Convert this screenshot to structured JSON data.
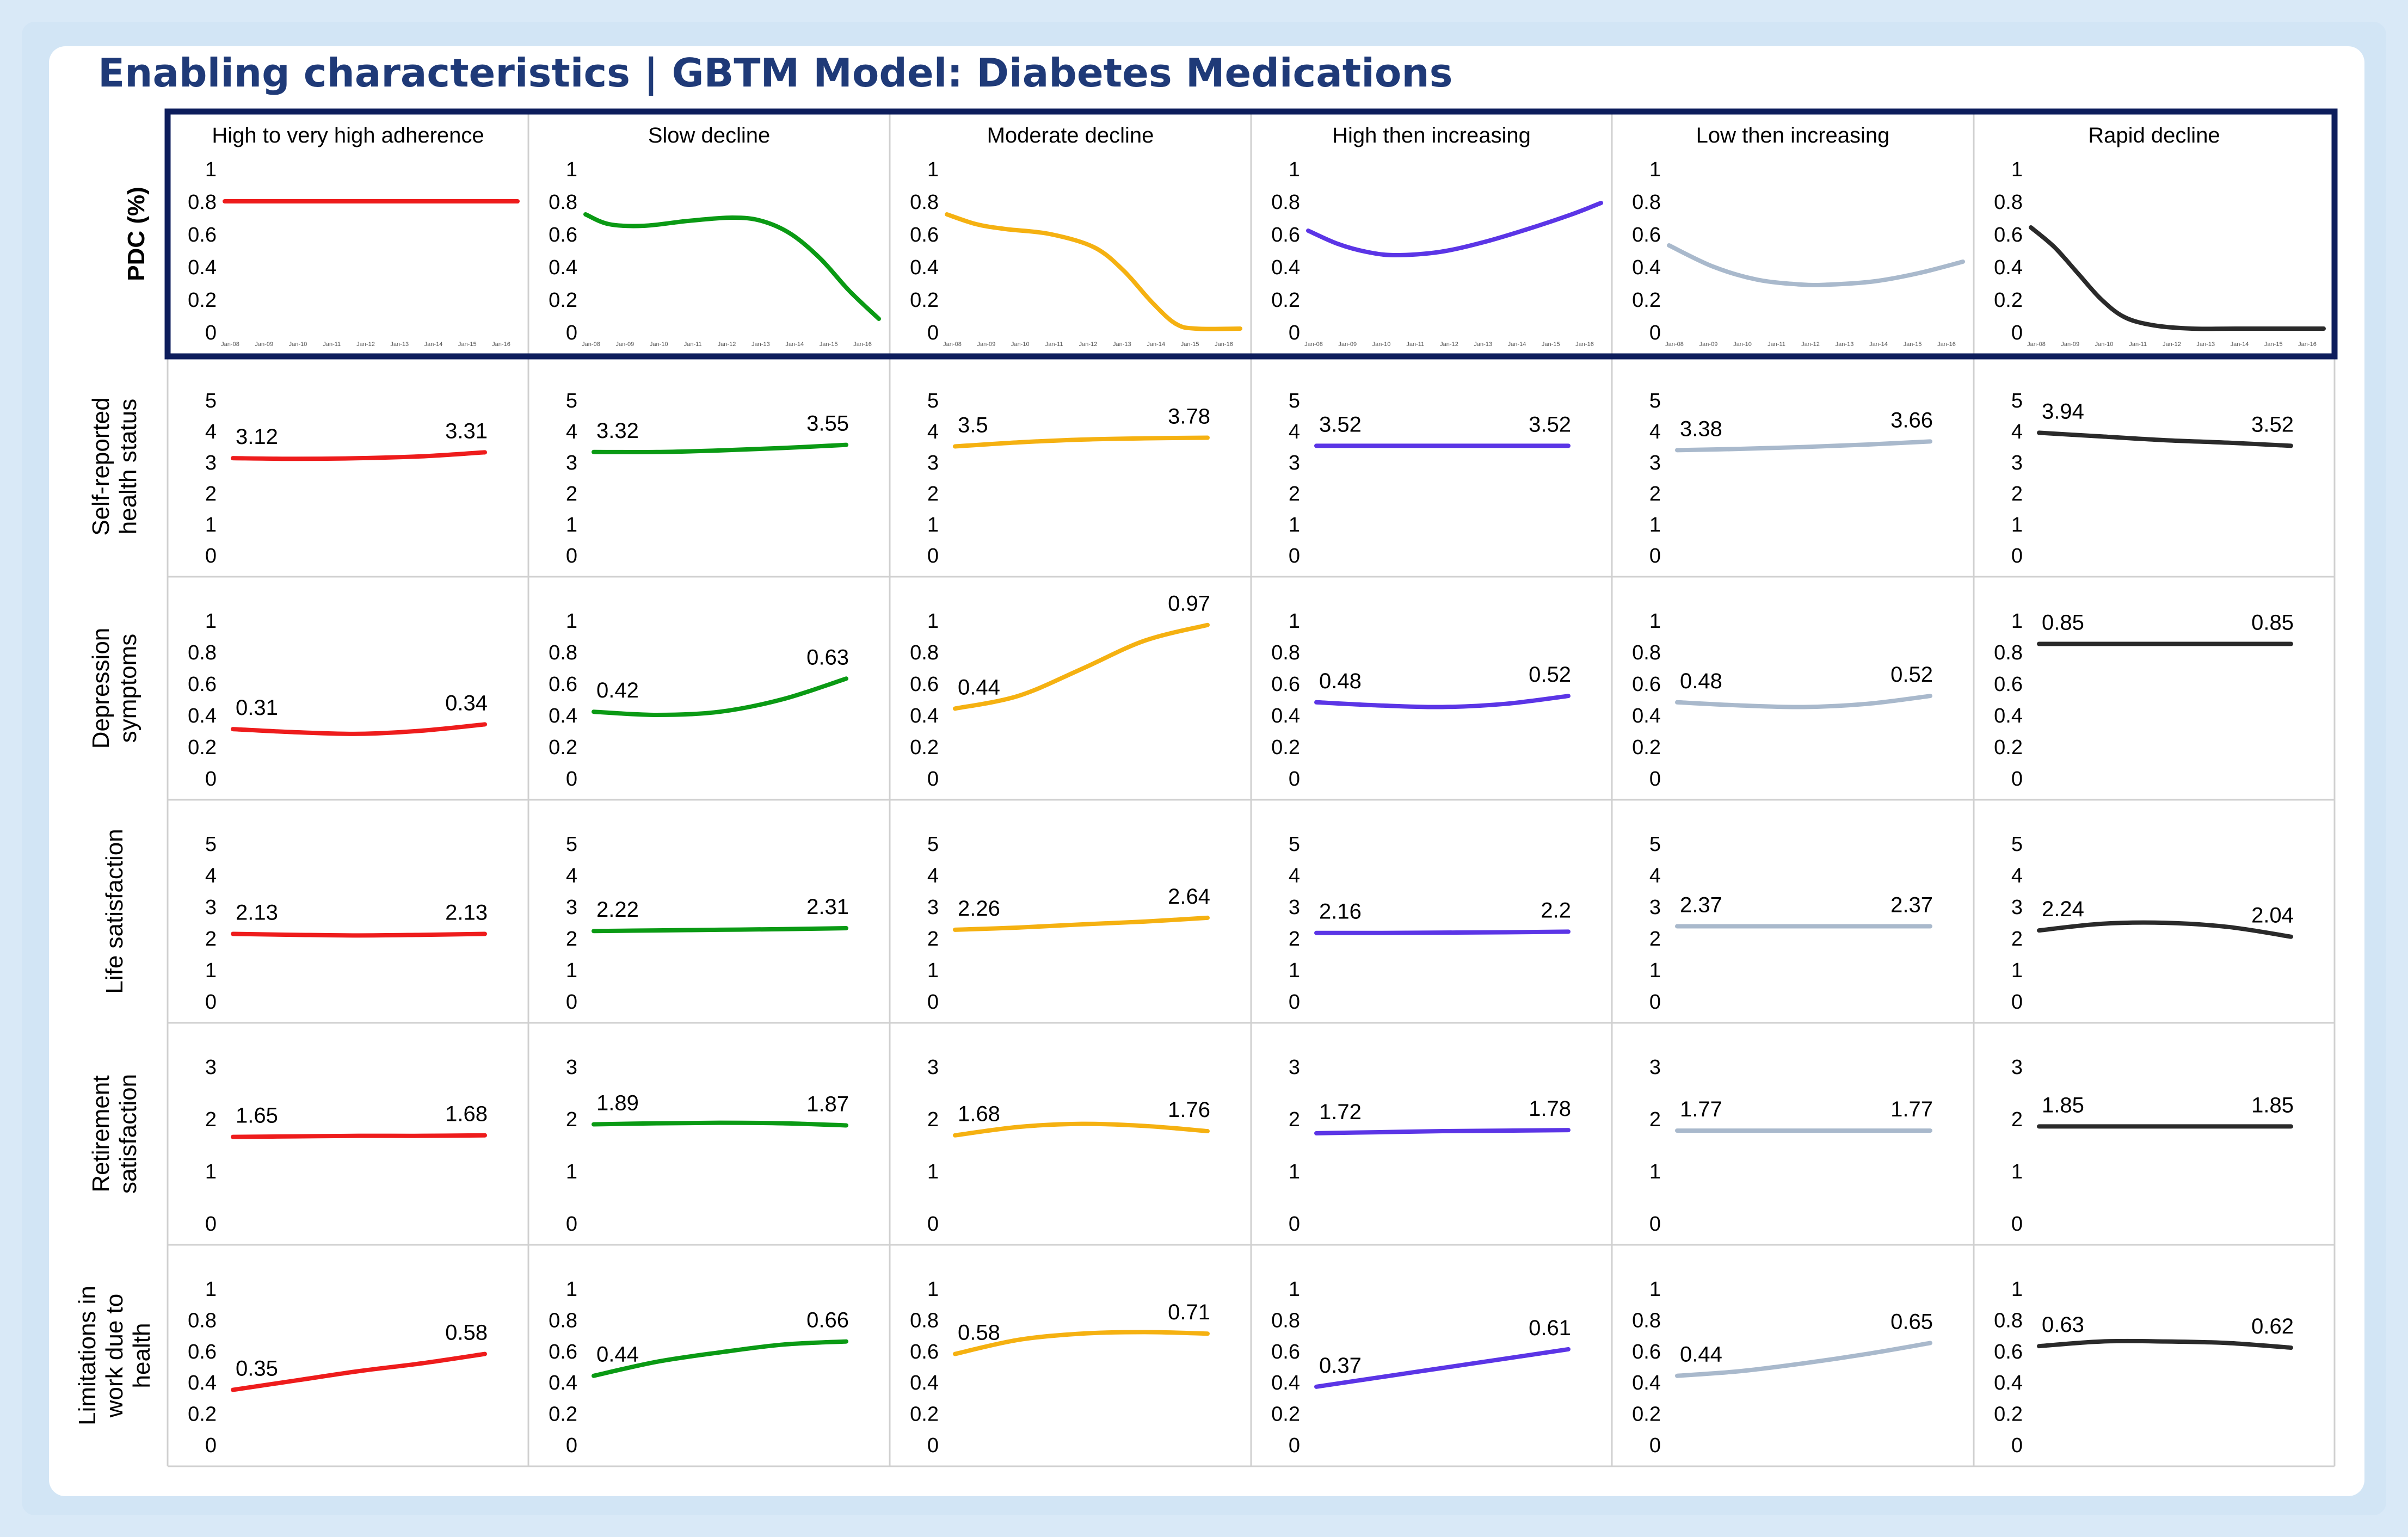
{
  "title": "Enabling characteristics | GBTM Model: Diabetes Medications",
  "columns": [
    "High to very high adherence",
    "Slow decline",
    "Moderate decline",
    "High then increasing",
    "Low then increasing",
    "Rapid decline"
  ],
  "colors": [
    "#ee1c1c",
    "#0a9a14",
    "#f5b111",
    "#5b35e6",
    "#a9b9cc",
    "#2a2a2a"
  ],
  "x_tick_labels": [
    "Jan-08",
    "Jan-09",
    "Jan-10",
    "Jan-11",
    "Jan-12",
    "Jan-13",
    "Jan-14",
    "Jan-15",
    "Jan-16"
  ],
  "chart_data": [
    {
      "type": "line",
      "row": "PDC (%)",
      "ylabels": [
        "1",
        "0.8",
        "0.6",
        "0.4",
        "0.2",
        "0"
      ],
      "ylim": [
        0,
        1
      ],
      "series": [
        {
          "name": "High to very high adherence",
          "x": [
            0,
            1
          ],
          "values": [
            0.8,
            0.8
          ],
          "labels": []
        },
        {
          "name": "Slow decline",
          "x": [
            0,
            0.08,
            0.2,
            0.35,
            0.5,
            0.6,
            0.7,
            0.8,
            0.9,
            1.0
          ],
          "values": [
            0.72,
            0.66,
            0.65,
            0.68,
            0.7,
            0.68,
            0.6,
            0.45,
            0.25,
            0.08
          ],
          "labels": []
        },
        {
          "name": "Moderate decline",
          "x": [
            0,
            0.1,
            0.2,
            0.35,
            0.5,
            0.6,
            0.7,
            0.78,
            0.85,
            1.0
          ],
          "values": [
            0.72,
            0.66,
            0.63,
            0.6,
            0.52,
            0.38,
            0.18,
            0.05,
            0.02,
            0.02
          ],
          "labels": []
        },
        {
          "name": "High then increasing",
          "x": [
            0,
            0.1,
            0.2,
            0.3,
            0.45,
            0.6,
            0.75,
            0.9,
            1.0
          ],
          "values": [
            0.62,
            0.54,
            0.49,
            0.47,
            0.49,
            0.55,
            0.63,
            0.72,
            0.79
          ],
          "labels": []
        },
        {
          "name": "Low then increasing",
          "x": [
            0,
            0.15,
            0.3,
            0.45,
            0.55,
            0.7,
            0.85,
            1.0
          ],
          "values": [
            0.53,
            0.4,
            0.32,
            0.29,
            0.29,
            0.31,
            0.36,
            0.43
          ],
          "labels": []
        },
        {
          "name": "Rapid decline",
          "x": [
            0,
            0.08,
            0.16,
            0.24,
            0.32,
            0.42,
            0.55,
            0.7,
            1.0
          ],
          "values": [
            0.64,
            0.52,
            0.36,
            0.2,
            0.09,
            0.04,
            0.02,
            0.02,
            0.02
          ],
          "labels": []
        }
      ]
    },
    {
      "type": "line",
      "row": "Self-reported health status",
      "ylabels": [
        "5",
        "4",
        "3",
        "2",
        "1",
        "0"
      ],
      "ylim": [
        0,
        5
      ],
      "series": [
        {
          "name": "High to very high adherence",
          "x": [
            0,
            0.25,
            0.5,
            0.75,
            1
          ],
          "values": [
            3.12,
            3.1,
            3.12,
            3.18,
            3.31
          ],
          "labels": [
            "3.12",
            "3.31"
          ]
        },
        {
          "name": "Slow decline",
          "x": [
            0,
            0.25,
            0.5,
            0.75,
            1
          ],
          "values": [
            3.32,
            3.32,
            3.37,
            3.45,
            3.55
          ],
          "labels": [
            "3.32",
            "3.55"
          ]
        },
        {
          "name": "Moderate decline",
          "x": [
            0,
            0.25,
            0.5,
            0.75,
            1
          ],
          "values": [
            3.5,
            3.63,
            3.72,
            3.76,
            3.78
          ],
          "labels": [
            "3.5",
            "3.78"
          ]
        },
        {
          "name": "High then increasing",
          "x": [
            0,
            1
          ],
          "values": [
            3.52,
            3.52
          ],
          "labels": [
            "3.52",
            "3.52"
          ]
        },
        {
          "name": "Low then increasing",
          "x": [
            0,
            0.25,
            0.5,
            0.75,
            1
          ],
          "values": [
            3.38,
            3.42,
            3.48,
            3.56,
            3.66
          ],
          "labels": [
            "3.38",
            "3.66"
          ]
        },
        {
          "name": "Rapid decline",
          "x": [
            0,
            0.25,
            0.5,
            0.75,
            1
          ],
          "values": [
            3.94,
            3.82,
            3.7,
            3.62,
            3.52
          ],
          "labels": [
            "3.94",
            "3.52"
          ]
        }
      ]
    },
    {
      "type": "line",
      "row": "Depression symptoms",
      "ylabels": [
        "1",
        "0.8",
        "0.6",
        "0.4",
        "0.2",
        "0"
      ],
      "ylim": [
        0,
        1
      ],
      "series": [
        {
          "name": "High to very high adherence",
          "x": [
            0,
            0.25,
            0.5,
            0.75,
            1
          ],
          "values": [
            0.31,
            0.29,
            0.28,
            0.3,
            0.34
          ],
          "labels": [
            "0.31",
            "0.34"
          ]
        },
        {
          "name": "Slow decline",
          "x": [
            0,
            0.25,
            0.5,
            0.75,
            1
          ],
          "values": [
            0.42,
            0.4,
            0.42,
            0.5,
            0.63
          ],
          "labels": [
            "0.42",
            "0.63"
          ]
        },
        {
          "name": "Moderate decline",
          "x": [
            0,
            0.25,
            0.5,
            0.75,
            1
          ],
          "values": [
            0.44,
            0.52,
            0.69,
            0.87,
            0.97
          ],
          "labels": [
            "0.44",
            "0.97"
          ]
        },
        {
          "name": "High then increasing",
          "x": [
            0,
            0.25,
            0.5,
            0.75,
            1
          ],
          "values": [
            0.48,
            0.46,
            0.45,
            0.47,
            0.52
          ],
          "labels": [
            "0.48",
            "0.52"
          ]
        },
        {
          "name": "Low then increasing",
          "x": [
            0,
            0.25,
            0.5,
            0.75,
            1
          ],
          "values": [
            0.48,
            0.46,
            0.45,
            0.47,
            0.52
          ],
          "labels": [
            "0.48",
            "0.52"
          ]
        },
        {
          "name": "Rapid decline",
          "x": [
            0,
            1
          ],
          "values": [
            0.85,
            0.85
          ],
          "labels": [
            "0.85",
            "0.85"
          ]
        }
      ]
    },
    {
      "type": "line",
      "row": "Life satisfaction",
      "ylabels": [
        "5",
        "4",
        "3",
        "2",
        "1",
        "0"
      ],
      "ylim": [
        0,
        5
      ],
      "series": [
        {
          "name": "High to very high adherence",
          "x": [
            0,
            0.25,
            0.5,
            0.75,
            1
          ],
          "values": [
            2.13,
            2.1,
            2.08,
            2.1,
            2.13
          ],
          "labels": [
            "2.13",
            "2.13"
          ]
        },
        {
          "name": "Slow decline",
          "x": [
            0,
            0.25,
            0.5,
            0.75,
            1
          ],
          "values": [
            2.22,
            2.24,
            2.26,
            2.28,
            2.31
          ],
          "labels": [
            "2.22",
            "2.31"
          ]
        },
        {
          "name": "Moderate decline",
          "x": [
            0,
            0.25,
            0.5,
            0.75,
            1
          ],
          "values": [
            2.26,
            2.33,
            2.43,
            2.52,
            2.64
          ],
          "labels": [
            "2.26",
            "2.64"
          ]
        },
        {
          "name": "High then increasing",
          "x": [
            0,
            0.25,
            0.5,
            0.75,
            1
          ],
          "values": [
            2.16,
            2.16,
            2.17,
            2.18,
            2.2
          ],
          "labels": [
            "2.16",
            "2.2"
          ]
        },
        {
          "name": "Low then increasing",
          "x": [
            0,
            1
          ],
          "values": [
            2.37,
            2.37
          ],
          "labels": [
            "2.37",
            "2.37"
          ]
        },
        {
          "name": "Rapid decline",
          "x": [
            0,
            0.25,
            0.5,
            0.75,
            1
          ],
          "values": [
            2.24,
            2.45,
            2.48,
            2.35,
            2.04
          ],
          "labels": [
            "2.24",
            "2.04"
          ]
        }
      ]
    },
    {
      "type": "line",
      "row": "Retirement satisfaction",
      "ylabels": [
        "3",
        "2",
        "1",
        "0"
      ],
      "ylim": [
        0,
        3
      ],
      "series": [
        {
          "name": "High to very high adherence",
          "x": [
            0,
            0.25,
            0.5,
            0.75,
            1
          ],
          "values": [
            1.65,
            1.66,
            1.67,
            1.67,
            1.68
          ],
          "labels": [
            "1.65",
            "1.68"
          ]
        },
        {
          "name": "Slow decline",
          "x": [
            0,
            0.25,
            0.5,
            0.75,
            1
          ],
          "values": [
            1.89,
            1.91,
            1.92,
            1.91,
            1.87
          ],
          "labels": [
            "1.89",
            "1.87"
          ]
        },
        {
          "name": "Moderate decline",
          "x": [
            0,
            0.25,
            0.5,
            0.75,
            1
          ],
          "values": [
            1.68,
            1.84,
            1.9,
            1.86,
            1.76
          ],
          "labels": [
            "1.68",
            "1.76"
          ]
        },
        {
          "name": "High then increasing",
          "x": [
            0,
            0.25,
            0.5,
            0.75,
            1
          ],
          "values": [
            1.72,
            1.74,
            1.76,
            1.77,
            1.78
          ],
          "labels": [
            "1.72",
            "1.78"
          ]
        },
        {
          "name": "Low then increasing",
          "x": [
            0,
            1
          ],
          "values": [
            1.77,
            1.77
          ],
          "labels": [
            "1.77",
            "1.77"
          ]
        },
        {
          "name": "Rapid decline",
          "x": [
            0,
            1
          ],
          "values": [
            1.85,
            1.85
          ],
          "labels": [
            "1.85",
            "1.85"
          ]
        }
      ]
    },
    {
      "type": "line",
      "row": "Limitations in work due to health",
      "ylabels": [
        "1",
        "0.8",
        "0.6",
        "0.4",
        "0.2",
        "0"
      ],
      "ylim": [
        0,
        1
      ],
      "series": [
        {
          "name": "High to very high adherence",
          "x": [
            0,
            0.25,
            0.5,
            0.75,
            1
          ],
          "values": [
            0.35,
            0.41,
            0.47,
            0.52,
            0.58
          ],
          "labels": [
            "0.35",
            "0.58"
          ]
        },
        {
          "name": "Slow decline",
          "x": [
            0,
            0.25,
            0.5,
            0.75,
            1
          ],
          "values": [
            0.44,
            0.53,
            0.59,
            0.64,
            0.66
          ],
          "labels": [
            "0.44",
            "0.66"
          ]
        },
        {
          "name": "Moderate decline",
          "x": [
            0,
            0.25,
            0.5,
            0.75,
            1
          ],
          "values": [
            0.58,
            0.67,
            0.71,
            0.72,
            0.71
          ],
          "labels": [
            "0.58",
            "0.71"
          ]
        },
        {
          "name": "High then increasing",
          "x": [
            0,
            0.25,
            0.5,
            0.75,
            1
          ],
          "values": [
            0.37,
            0.43,
            0.49,
            0.55,
            0.61
          ],
          "labels": [
            "0.37",
            "0.61"
          ]
        },
        {
          "name": "Low then increasing",
          "x": [
            0,
            0.25,
            0.5,
            0.75,
            1
          ],
          "values": [
            0.44,
            0.47,
            0.52,
            0.58,
            0.65
          ],
          "labels": [
            "0.44",
            "0.65"
          ]
        },
        {
          "name": "Rapid decline",
          "x": [
            0,
            0.25,
            0.5,
            0.75,
            1
          ],
          "values": [
            0.63,
            0.66,
            0.66,
            0.65,
            0.62
          ],
          "labels": [
            "0.63",
            "0.62"
          ]
        }
      ]
    }
  ]
}
